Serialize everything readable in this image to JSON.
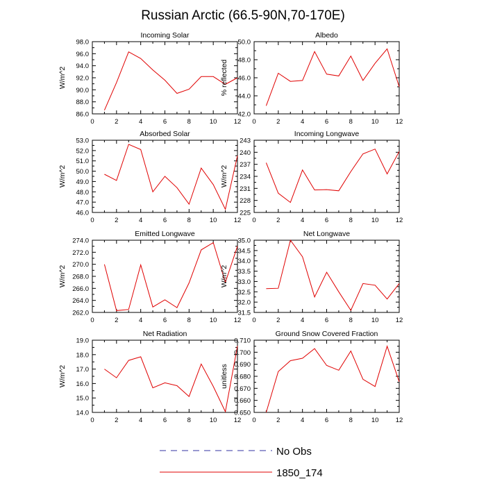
{
  "title": "Russian Arctic (66.5-90N,70-170E)",
  "legend": [
    {
      "label": "No Obs",
      "color": "#3030a0",
      "dash": true
    },
    {
      "label": "1850_174",
      "color": "#e00000",
      "dash": false
    }
  ],
  "chart_data": [
    {
      "type": "line",
      "title": "Incoming Solar",
      "ylabel": "W/m^2",
      "xlim": [
        0,
        12
      ],
      "xticks": [
        "0",
        "2",
        "4",
        "6",
        "8",
        "10",
        "12"
      ],
      "ylim": [
        86.0,
        98.0
      ],
      "yticks": [
        "86.0",
        "88.0",
        "90.0",
        "92.0",
        "94.0",
        "96.0",
        "98.0"
      ],
      "x": [
        1,
        2,
        3,
        4,
        5,
        6,
        7,
        8,
        9,
        10,
        11,
        12
      ],
      "series": [
        {
          "name": "1850_174",
          "color": "#e00000",
          "values": [
            86.6,
            91.2,
            96.3,
            95.2,
            93.3,
            91.6,
            89.4,
            90.1,
            92.2,
            92.2,
            90.9,
            92.0
          ]
        }
      ]
    },
    {
      "type": "line",
      "title": "Albedo",
      "ylabel": "% reflected",
      "xlim": [
        0,
        12
      ],
      "xticks": [
        "0",
        "2",
        "4",
        "6",
        "8",
        "10",
        "12"
      ],
      "ylim": [
        42.0,
        50.0
      ],
      "yticks": [
        "42.0",
        "44.0",
        "46.0",
        "48.0",
        "50.0"
      ],
      "x": [
        1,
        2,
        3,
        4,
        5,
        6,
        7,
        8,
        9,
        10,
        11,
        12
      ],
      "series": [
        {
          "name": "1850_174",
          "color": "#e00000",
          "values": [
            42.9,
            46.5,
            45.6,
            45.7,
            48.9,
            46.4,
            46.2,
            48.4,
            45.7,
            47.6,
            49.2,
            45.0
          ]
        }
      ]
    },
    {
      "type": "line",
      "title": "Absorbed Solar",
      "ylabel": "W/m^2",
      "xlim": [
        0,
        12
      ],
      "xticks": [
        "0",
        "2",
        "4",
        "6",
        "8",
        "10",
        "12"
      ],
      "ylim": [
        46.0,
        53.0
      ],
      "yticks": [
        "46.0",
        "47.0",
        "48.0",
        "49.0",
        "50.0",
        "51.0",
        "52.0",
        "53.0"
      ],
      "x": [
        1,
        2,
        3,
        4,
        5,
        6,
        7,
        8,
        9,
        10,
        11,
        12
      ],
      "series": [
        {
          "name": "1850_174",
          "color": "#e00000",
          "values": [
            49.7,
            49.1,
            52.6,
            52.1,
            48.0,
            49.5,
            48.4,
            46.8,
            50.3,
            48.7,
            46.3,
            51.5
          ]
        }
      ]
    },
    {
      "type": "line",
      "title": "Incoming Longwave",
      "ylabel": "W/m^2",
      "xlim": [
        0,
        12
      ],
      "xticks": [
        "0",
        "2",
        "4",
        "6",
        "8",
        "10",
        "12"
      ],
      "ylim": [
        225,
        243
      ],
      "yticks": [
        "225",
        "228",
        "231",
        "234",
        "237",
        "240",
        "243"
      ],
      "x": [
        1,
        2,
        3,
        4,
        5,
        6,
        7,
        8,
        9,
        10,
        11,
        12
      ],
      "series": [
        {
          "name": "1850_174",
          "color": "#e00000",
          "values": [
            237.4,
            229.8,
            227.5,
            235.6,
            230.6,
            230.7,
            230.4,
            235.2,
            239.6,
            240.8,
            234.6,
            240.2
          ]
        }
      ]
    },
    {
      "type": "line",
      "title": "Emitted Longwave",
      "ylabel": "W/m^2",
      "xlim": [
        0,
        12
      ],
      "xticks": [
        "0",
        "2",
        "4",
        "6",
        "8",
        "10",
        "12"
      ],
      "ylim": [
        262.0,
        274.0
      ],
      "yticks": [
        "262.0",
        "264.0",
        "266.0",
        "268.0",
        "270.0",
        "272.0",
        "274.0"
      ],
      "x": [
        1,
        2,
        3,
        4,
        5,
        6,
        7,
        8,
        9,
        10,
        11,
        12
      ],
      "series": [
        {
          "name": "1850_174",
          "color": "#e00000",
          "values": [
            270.0,
            262.3,
            262.5,
            269.9,
            262.9,
            264.1,
            262.8,
            266.9,
            272.4,
            273.6,
            267.0,
            273.0
          ]
        }
      ]
    },
    {
      "type": "line",
      "title": "Net Longwave",
      "ylabel": "W/m^2",
      "xlim": [
        0,
        12
      ],
      "xticks": [
        "0",
        "2",
        "4",
        "6",
        "8",
        "10",
        "12"
      ],
      "ylim": [
        31.5,
        35.0
      ],
      "yticks": [
        "31.5",
        "32.0",
        "32.5",
        "33.0",
        "33.5",
        "34.0",
        "34.5",
        "35.0"
      ],
      "x": [
        1,
        2,
        3,
        4,
        5,
        6,
        7,
        8,
        9,
        10,
        11,
        12
      ],
      "series": [
        {
          "name": "1850_174",
          "color": "#e00000",
          "values": [
            32.65,
            32.67,
            35.0,
            34.2,
            32.25,
            33.45,
            32.5,
            31.6,
            32.9,
            32.82,
            32.15,
            32.9
          ]
        }
      ]
    },
    {
      "type": "line",
      "title": "Net Radiation",
      "ylabel": "W/m^2",
      "xlim": [
        0,
        12
      ],
      "xticks": [
        "0",
        "2",
        "4",
        "6",
        "8",
        "10",
        "12"
      ],
      "ylim": [
        14.0,
        19.0
      ],
      "yticks": [
        "14.0",
        "15.0",
        "16.0",
        "17.0",
        "18.0",
        "19.0"
      ],
      "x": [
        1,
        2,
        3,
        4,
        5,
        6,
        7,
        8,
        9,
        10,
        11,
        12
      ],
      "series": [
        {
          "name": "1850_174",
          "color": "#e00000",
          "values": [
            17.0,
            16.4,
            17.6,
            17.85,
            15.7,
            16.05,
            15.85,
            15.1,
            17.35,
            15.8,
            14.05,
            18.6
          ]
        }
      ]
    },
    {
      "type": "line",
      "title": "Ground Snow Covered Fraction",
      "ylabel": "unitless",
      "xlim": [
        0,
        12
      ],
      "xticks": [
        "0",
        "2",
        "4",
        "6",
        "8",
        "10",
        "12"
      ],
      "ylim": [
        0.65,
        0.71
      ],
      "yticks": [
        "0.650",
        "0.660",
        "0.670",
        "0.680",
        "0.690",
        "0.700",
        "0.710"
      ],
      "x": [
        1,
        2,
        3,
        4,
        5,
        6,
        7,
        8,
        9,
        10,
        11,
        12
      ],
      "series": [
        {
          "name": "1850_174",
          "color": "#e00000",
          "values": [
            0.65,
            0.684,
            0.693,
            0.695,
            0.703,
            0.689,
            0.685,
            0.701,
            0.6775,
            0.6715,
            0.705,
            0.6755
          ]
        }
      ]
    }
  ]
}
